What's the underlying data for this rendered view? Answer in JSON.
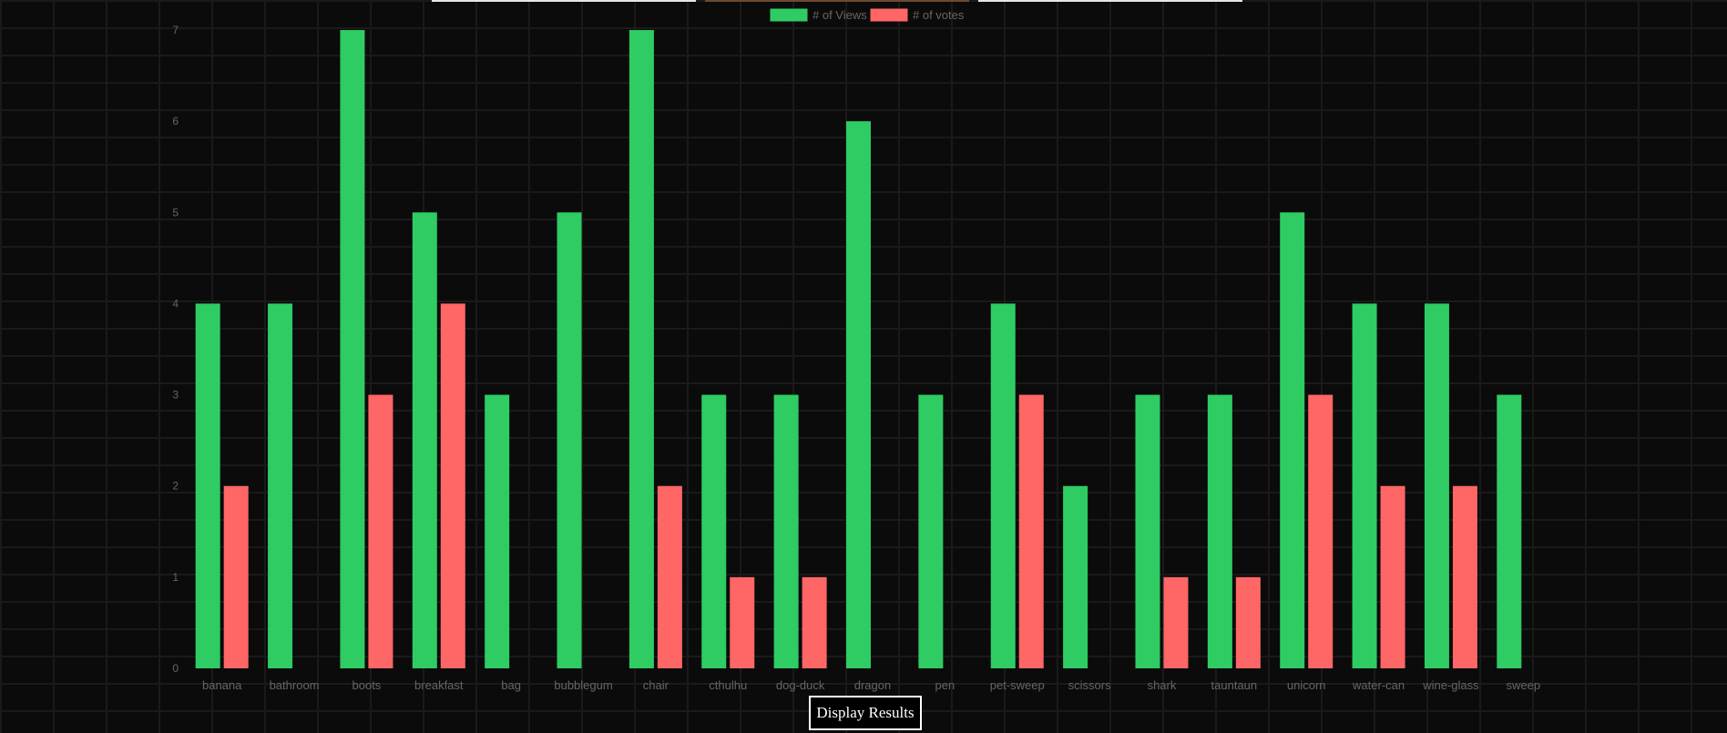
{
  "page": {
    "display_button_label": "Display Results"
  },
  "chart_data": {
    "type": "bar",
    "categories": [
      "banana",
      "bathroom",
      "boots",
      "breakfast",
      "bag",
      "bubblegum",
      "chair",
      "cthulhu",
      "dog-duck",
      "dragon",
      "pen",
      "pet-sweep",
      "scissors",
      "shark",
      "tauntaun",
      "unicorn",
      "water-can",
      "wine-glass",
      "sweep"
    ],
    "series": [
      {
        "name": "# of Views",
        "color": "#2ecc63",
        "values": [
          4,
          4,
          7,
          5,
          3,
          5,
          7,
          3,
          3,
          6,
          3,
          4,
          2,
          3,
          3,
          5,
          4,
          4,
          3
        ]
      },
      {
        "name": "# of votes",
        "color": "#ff6666",
        "values": [
          2,
          0,
          3,
          4,
          0,
          0,
          2,
          1,
          1,
          0,
          0,
          3,
          0,
          1,
          1,
          3,
          2,
          2,
          0
        ]
      }
    ],
    "ylim": [
      0,
      7
    ],
    "yticks": [
      0,
      1,
      2,
      3,
      4,
      5,
      6,
      7
    ],
    "legend_position": "top-center",
    "grid": false
  }
}
